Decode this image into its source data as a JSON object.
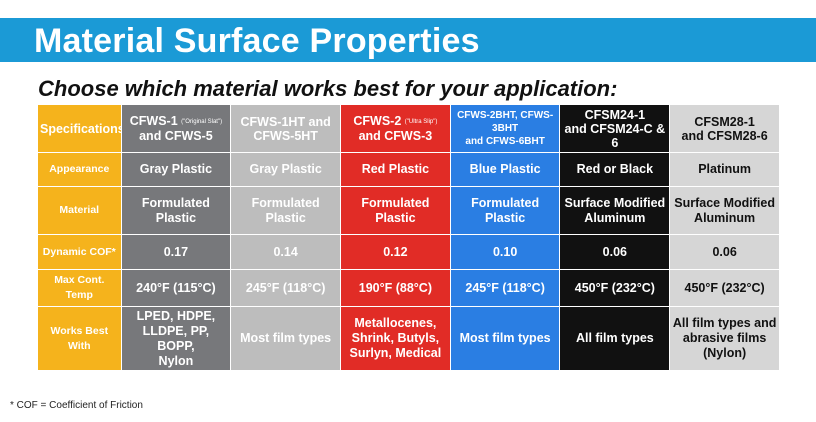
{
  "title": "Material Surface Properties",
  "subtitle": "Choose which material works best for your application:",
  "colors": {
    "banner": "#1b9ad6",
    "label_column": "#f5b31c",
    "columns": [
      "#77787b",
      "#bdbdbd",
      "#e12c26",
      "#2a7ee3",
      "#111111",
      "#d6d6d6"
    ]
  },
  "headers": [
    {
      "line1": "CFWS-1",
      "note": "(\"Original Slat\")",
      "line2": "and CFWS-5"
    },
    {
      "line1": "CFWS-1HT and",
      "note": "",
      "line2": "CFWS-5HT"
    },
    {
      "line1": "CFWS-2",
      "note": "(\"Ultra Slip\")",
      "line2": "and CFWS-3"
    },
    {
      "line1": "CFWS-2BHT, CFWS-3BHT",
      "note": "",
      "line2": "and CFWS-6BHT"
    },
    {
      "line1": "CFSM24-1",
      "note": "",
      "line2": "and CFSM24-C & 6"
    },
    {
      "line1": "CFSM28-1",
      "note": "",
      "line2": "and CFSM28-6"
    }
  ],
  "rows": [
    {
      "label": "Specifications"
    },
    {
      "label": "Appearance",
      "cells": [
        "Gray Plastic",
        "Gray Plastic",
        "Red Plastic",
        "Blue Plastic",
        "Red or Black",
        "Platinum"
      ]
    },
    {
      "label": "Material",
      "cells": [
        [
          "Formulated",
          "Plastic"
        ],
        [
          "Formulated",
          "Plastic"
        ],
        [
          "Formulated",
          "Plastic"
        ],
        [
          "Formulated",
          "Plastic"
        ],
        [
          "Surface Modified",
          "Aluminum"
        ],
        [
          "Surface Modified",
          "Aluminum"
        ]
      ]
    },
    {
      "label": "Dynamic COF*",
      "cells": [
        "0.17",
        "0.14",
        "0.12",
        "0.10",
        "0.06",
        "0.06"
      ]
    },
    {
      "label": "Max Cont. Temp",
      "cells": [
        "240°F (115°C)",
        "245°F (118°C)",
        "190°F (88°C)",
        "245°F (118°C)",
        "450°F (232°C)",
        "450°F (232°C)"
      ]
    },
    {
      "label": "Works Best With",
      "cells": [
        [
          "LPED, HDPE,",
          "LLDPE, PP, BOPP,",
          "Nylon"
        ],
        [
          "Most film types"
        ],
        [
          "Metallocenes,",
          "Shrink, Butyls,",
          "Surlyn, Medical"
        ],
        [
          "Most film types"
        ],
        [
          "All film types"
        ],
        [
          "All film types and",
          "abrasive films",
          "(Nylon)"
        ]
      ]
    }
  ],
  "footnote": "* COF = Coefficient of Friction"
}
